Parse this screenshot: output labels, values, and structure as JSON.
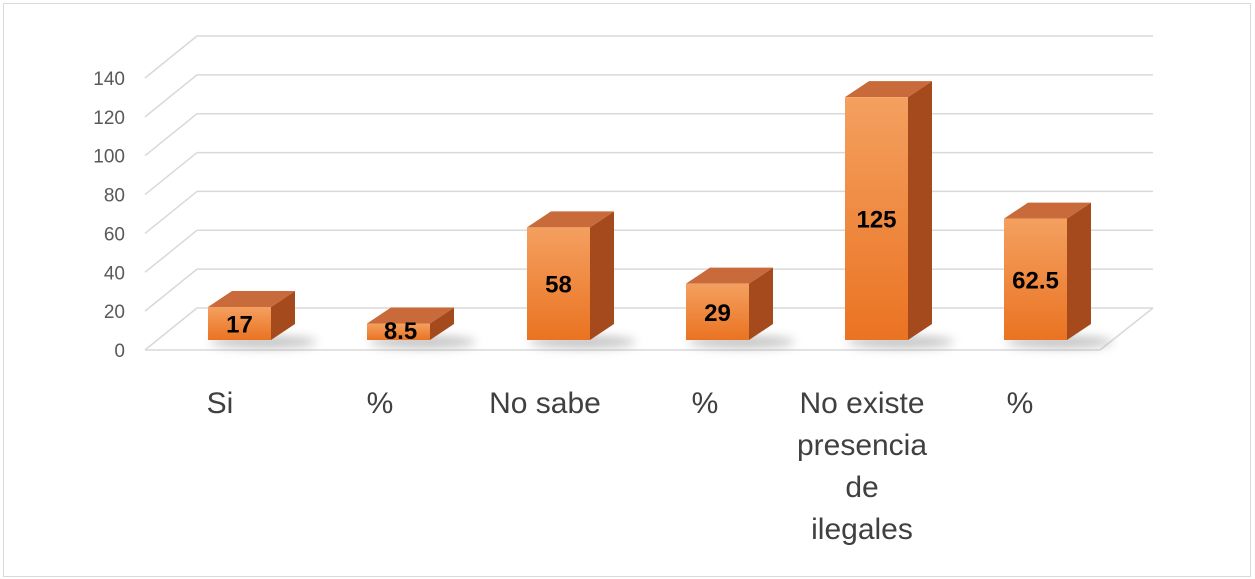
{
  "chart_data": {
    "type": "bar",
    "style": "3d-column",
    "categories": [
      [
        "Si"
      ],
      [
        "%"
      ],
      [
        "No sabe"
      ],
      [
        "%"
      ],
      [
        "No existe",
        "presencia",
        "de",
        "ilegales"
      ],
      [
        "%"
      ]
    ],
    "values": [
      17,
      8.5,
      58,
      29,
      125,
      62.5
    ],
    "value_labels": [
      "17",
      "8.5",
      "58",
      "29",
      "125",
      "62.5"
    ],
    "y_ticks": [
      "0",
      "20",
      "40",
      "60",
      "80",
      "100",
      "120",
      "140"
    ],
    "ylim": [
      0,
      140
    ],
    "grid": true,
    "legend": "none",
    "colors": {
      "bar_front_top": "#f4a060",
      "bar_front_bottom": "#ea7322",
      "bar_top": "#c86a3a",
      "bar_side": "#a54a1c",
      "gridline": "#d9d9d9",
      "shadow": "#9a9a9a"
    }
  }
}
